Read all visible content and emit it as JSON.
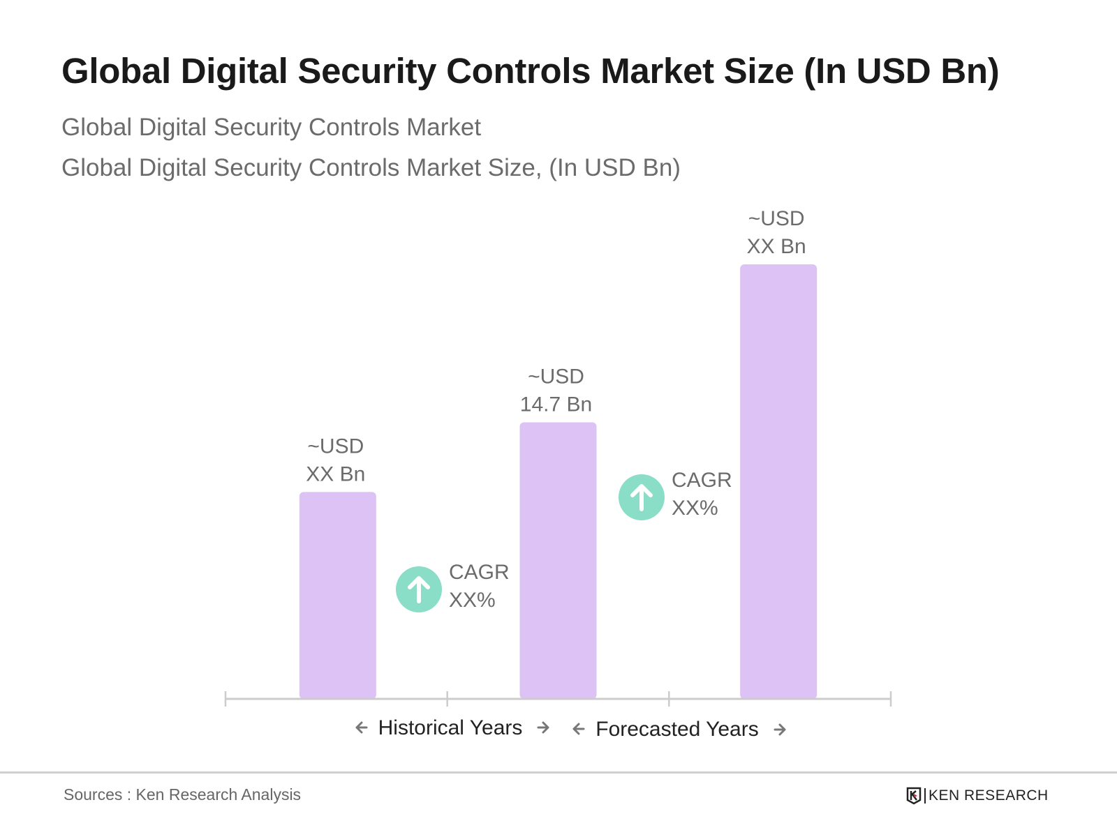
{
  "header": {
    "title": "Global Digital Security Controls Market Size (In USD Bn)",
    "subtitle_1": "Global Digital Security Controls Market",
    "subtitle_2": "Global Digital Security Controls Market Size, (In USD Bn)"
  },
  "chart_data": {
    "type": "bar",
    "title": "Global Digital Security Controls Market Size (In USD Bn)",
    "ylabel": "",
    "xlabel": "",
    "grid": false,
    "bars": [
      {
        "label_line1": "~USD",
        "label_line2": "XX Bn",
        "value": 11.0
      },
      {
        "label_line1": "~USD",
        "label_line2": "14.7 Bn",
        "value": 14.7
      },
      {
        "label_line1": "~USD",
        "label_line2": "XX Bn",
        "value": 23.1
      }
    ],
    "ylim": [
      0,
      25
    ],
    "cagr_annotations": [
      {
        "line1": "CAGR",
        "line2": "XX%",
        "icon": "arrow-up-circle-icon"
      },
      {
        "line1": "CAGR",
        "line2": "XX%",
        "icon": "arrow-up-circle-icon"
      }
    ],
    "period_labels": [
      "Historical Years",
      "Forecasted Years"
    ],
    "colors": {
      "bar": "#dcc2f5",
      "cagr_circle": "#8addc6",
      "axis": "#cccccc"
    }
  },
  "footer": {
    "sources": "Sources : Ken Research Analysis",
    "logo_text": "KEN RESEARCH"
  }
}
